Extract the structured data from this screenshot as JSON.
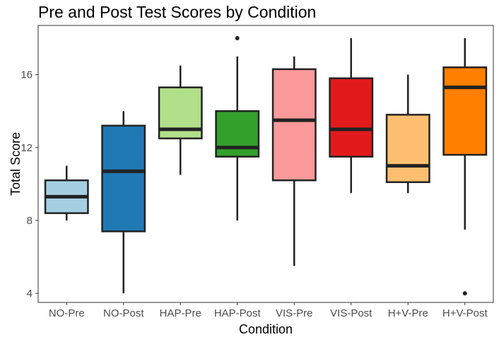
{
  "chart_data": {
    "type": "box",
    "title": "Pre and Post Test Scores by Condition",
    "xlabel": "Condition",
    "ylabel": "Total Score",
    "ylim": [
      3.5,
      18.7
    ],
    "yticks": [
      4,
      8,
      12,
      16
    ],
    "grid": false,
    "legend": "none",
    "categories": [
      "NO-Pre",
      "NO-Post",
      "HAP-Pre",
      "HAP-Post",
      "VIS-Pre",
      "VIS-Post",
      "H+V-Pre",
      "H+V-Post"
    ],
    "colors": [
      "#a6cee3",
      "#1f78b4",
      "#b2df8a",
      "#33a02c",
      "#fb9a99",
      "#e31a1c",
      "#fdbf6f",
      "#ff7f00"
    ],
    "boxes": [
      {
        "category": "NO-Pre",
        "whisker_low": 8,
        "q1": 8.4,
        "median": 9.3,
        "q3": 10.2,
        "whisker_high": 11,
        "outliers": []
      },
      {
        "category": "NO-Post",
        "whisker_low": 4,
        "q1": 7.4,
        "median": 10.7,
        "q3": 13.2,
        "whisker_high": 14,
        "outliers": []
      },
      {
        "category": "HAP-Pre",
        "whisker_low": 10.5,
        "q1": 12.5,
        "median": 13,
        "q3": 15.3,
        "whisker_high": 16.5,
        "outliers": []
      },
      {
        "category": "HAP-Post",
        "whisker_low": 8,
        "q1": 11.5,
        "median": 12,
        "q3": 14,
        "whisker_high": 17,
        "outliers": [
          18
        ]
      },
      {
        "category": "VIS-Pre",
        "whisker_low": 5.5,
        "q1": 10.2,
        "median": 13.5,
        "q3": 16.3,
        "whisker_high": 17,
        "outliers": []
      },
      {
        "category": "VIS-Post",
        "whisker_low": 9.5,
        "q1": 11.5,
        "median": 13,
        "q3": 15.8,
        "whisker_high": 18,
        "outliers": []
      },
      {
        "category": "H+V-Pre",
        "whisker_low": 9.5,
        "q1": 10.1,
        "median": 11,
        "q3": 13.8,
        "whisker_high": 16,
        "outliers": []
      },
      {
        "category": "H+V-Post",
        "whisker_low": 7.5,
        "q1": 11.6,
        "median": 15.3,
        "q3": 16.4,
        "whisker_high": 18,
        "outliers": [
          4
        ]
      }
    ]
  }
}
